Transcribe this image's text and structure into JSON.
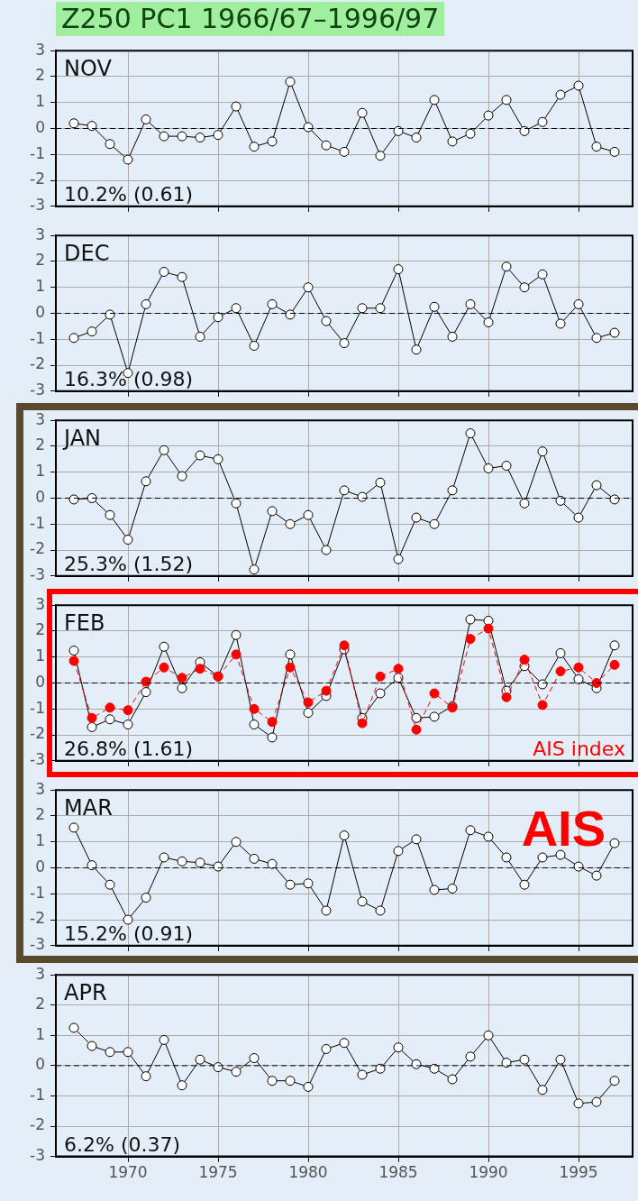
{
  "chart_data": [
    {
      "type": "line",
      "title": "Z250 PC1 1966/67–1996/97",
      "annotations": [
        "NOV",
        "10.2% (0.61)"
      ],
      "x": [
        1967,
        1968,
        1969,
        1970,
        1971,
        1972,
        1973,
        1974,
        1975,
        1976,
        1977,
        1978,
        1979,
        1980,
        1981,
        1982,
        1983,
        1984,
        1985,
        1986,
        1987,
        1988,
        1989,
        1990,
        1991,
        1992,
        1993,
        1994,
        1995,
        1996,
        1997
      ],
      "series": [
        {
          "color": "#000000",
          "values": [
            0.2,
            0.1,
            -0.6,
            -1.2,
            0.35,
            -0.3,
            -0.3,
            -0.35,
            -0.25,
            0.85,
            -0.7,
            -0.5,
            1.8,
            0.05,
            -0.65,
            -0.9,
            0.6,
            -1.05,
            -0.1,
            -0.35,
            1.1,
            -0.5,
            -0.2,
            0.5,
            1.1,
            -0.1,
            0.25,
            1.3,
            1.65,
            -0.7,
            -0.9
          ]
        }
      ],
      "xlim": [
        1966,
        1998
      ],
      "ylim": [
        -3,
        3
      ],
      "xticks": [
        1970,
        1975,
        1980,
        1985,
        1990,
        1995
      ],
      "yticks": [
        -3,
        -2,
        -1,
        0,
        1,
        2,
        3
      ],
      "grid": true,
      "marker": "circle",
      "line_style": "solid",
      "tick_labels": "y",
      "ref_lines": [
        {
          "axis": "y",
          "value": 0,
          "line_style": "dashed"
        }
      ]
    },
    {
      "type": "line",
      "annotations": [
        "DEC",
        "16.3% (0.98)"
      ],
      "x": [
        1967,
        1968,
        1969,
        1970,
        1971,
        1972,
        1973,
        1974,
        1975,
        1976,
        1977,
        1978,
        1979,
        1980,
        1981,
        1982,
        1983,
        1984,
        1985,
        1986,
        1987,
        1988,
        1989,
        1990,
        1991,
        1992,
        1993,
        1994,
        1995,
        1996,
        1997
      ],
      "series": [
        {
          "color": "#000000",
          "values": [
            -0.95,
            -0.7,
            -0.05,
            -2.3,
            0.35,
            1.6,
            1.4,
            -0.9,
            -0.15,
            0.2,
            -1.25,
            0.35,
            -0.05,
            1.0,
            -0.3,
            -1.15,
            0.2,
            0.2,
            1.7,
            -1.4,
            0.25,
            -0.9,
            0.35,
            -0.35,
            1.8,
            1.0,
            1.5,
            -0.4,
            0.35,
            -0.95,
            -0.75
          ]
        }
      ],
      "xlim": [
        1966,
        1998
      ],
      "ylim": [
        -3,
        3
      ],
      "xticks": [
        1970,
        1975,
        1980,
        1985,
        1990,
        1995
      ],
      "yticks": [
        -3,
        -2,
        -1,
        0,
        1,
        2,
        3
      ],
      "grid": true,
      "marker": "circle",
      "line_style": "solid",
      "tick_labels": "y",
      "ref_lines": [
        {
          "axis": "y",
          "value": 0,
          "line_style": "dashed"
        }
      ]
    },
    {
      "type": "line",
      "annotations": [
        "JAN",
        "25.3% (1.52)"
      ],
      "x": [
        1967,
        1968,
        1969,
        1970,
        1971,
        1972,
        1973,
        1974,
        1975,
        1976,
        1977,
        1978,
        1979,
        1980,
        1981,
        1982,
        1983,
        1984,
        1985,
        1986,
        1987,
        1988,
        1989,
        1990,
        1991,
        1992,
        1993,
        1994,
        1995,
        1996,
        1997
      ],
      "series": [
        {
          "color": "#000000",
          "values": [
            -0.05,
            0,
            -0.65,
            -1.6,
            0.65,
            1.85,
            0.85,
            1.65,
            1.5,
            -0.2,
            -2.75,
            -0.5,
            -1.0,
            -0.65,
            -2.0,
            0.3,
            0.05,
            0.6,
            -2.35,
            -0.75,
            -1.0,
            0.3,
            2.5,
            1.15,
            1.25,
            -0.2,
            1.8,
            -0.1,
            -0.75,
            0.5,
            -0.05
          ]
        }
      ],
      "xlim": [
        1966,
        1998
      ],
      "ylim": [
        -3,
        3
      ],
      "xticks": [
        1970,
        1975,
        1980,
        1985,
        1990,
        1995
      ],
      "yticks": [
        -3,
        -2,
        -1,
        0,
        1,
        2,
        3
      ],
      "grid": true,
      "marker": "circle",
      "line_style": "solid",
      "tick_labels": "y",
      "ref_lines": [
        {
          "axis": "y",
          "value": 0,
          "line_style": "dashed"
        }
      ]
    },
    {
      "type": "line",
      "annotations": [
        "FEB",
        "26.8% (1.61)"
      ],
      "legend": "bottom right",
      "x": [
        1967,
        1968,
        1969,
        1970,
        1971,
        1972,
        1973,
        1974,
        1975,
        1976,
        1977,
        1978,
        1979,
        1980,
        1981,
        1982,
        1983,
        1984,
        1985,
        1986,
        1987,
        1988,
        1989,
        1990,
        1991,
        1992,
        1993,
        1994,
        1995,
        1996,
        1997
      ],
      "series": [
        {
          "color": "#000000",
          "line_style": "solid",
          "values": [
            1.25,
            -1.7,
            -1.4,
            -1.6,
            -0.35,
            1.4,
            -0.2,
            0.8,
            0.25,
            1.85,
            -1.6,
            -2.1,
            1.1,
            -1.15,
            -0.5,
            1.3,
            -1.35,
            -0.4,
            0.2,
            -1.35,
            -1.3,
            -0.9,
            2.45,
            2.4,
            -0.3,
            0.65,
            -0.05,
            1.15,
            0.15,
            -0.2,
            1.45
          ]
        },
        {
          "name": "AIS index",
          "color": "#ff0000",
          "line_style": "dashed",
          "values": [
            0.85,
            -1.35,
            -0.95,
            -1.05,
            0.05,
            0.6,
            0.2,
            0.55,
            0.25,
            1.1,
            -1.0,
            -1.5,
            0.6,
            -0.75,
            -0.3,
            1.45,
            -1.55,
            0.25,
            0.55,
            -1.8,
            -0.4,
            -0.95,
            1.7,
            2.1,
            -0.55,
            0.9,
            -0.85,
            0.45,
            0.6,
            0,
            0.7
          ]
        }
      ],
      "xlim": [
        1966,
        1998
      ],
      "ylim": [
        -3,
        3
      ],
      "xticks": [
        1970,
        1975,
        1980,
        1985,
        1990,
        1995
      ],
      "yticks": [
        -3,
        -2,
        -1,
        0,
        1,
        2,
        3
      ],
      "grid": true,
      "marker": "circle",
      "tick_labels": "y",
      "ref_lines": [
        {
          "axis": "y",
          "value": 0,
          "line_style": "dashed"
        }
      ]
    },
    {
      "type": "line",
      "annotations": [
        "MAR",
        "15.2% (0.91)",
        "AIS"
      ],
      "x": [
        1967,
        1968,
        1969,
        1970,
        1971,
        1972,
        1973,
        1974,
        1975,
        1976,
        1977,
        1978,
        1979,
        1980,
        1981,
        1982,
        1983,
        1984,
        1985,
        1986,
        1987,
        1988,
        1989,
        1990,
        1991,
        1992,
        1993,
        1994,
        1995,
        1996,
        1997
      ],
      "series": [
        {
          "color": "#000000",
          "values": [
            1.55,
            0.1,
            -0.65,
            -2.0,
            -1.15,
            0.4,
            0.25,
            0.2,
            0.05,
            1.0,
            0.35,
            0.15,
            -0.65,
            -0.6,
            -1.65,
            1.25,
            -1.3,
            -1.65,
            0.65,
            1.1,
            -0.85,
            -0.8,
            1.45,
            1.2,
            0.4,
            -0.65,
            0.4,
            0.5,
            0.05,
            -0.3,
            0.95
          ]
        }
      ],
      "xlim": [
        1966,
        1998
      ],
      "ylim": [
        -3,
        3
      ],
      "xticks": [
        1970,
        1975,
        1980,
        1985,
        1990,
        1995
      ],
      "yticks": [
        -3,
        -2,
        -1,
        0,
        1,
        2,
        3
      ],
      "grid": true,
      "marker": "circle",
      "line_style": "solid",
      "tick_labels": "y",
      "ref_lines": [
        {
          "axis": "y",
          "value": 0,
          "line_style": "dashed"
        }
      ]
    },
    {
      "type": "line",
      "annotations": [
        "APR",
        "6.2% (0.37)"
      ],
      "x": [
        1967,
        1968,
        1969,
        1970,
        1971,
        1972,
        1973,
        1974,
        1975,
        1976,
        1977,
        1978,
        1979,
        1980,
        1981,
        1982,
        1983,
        1984,
        1985,
        1986,
        1987,
        1988,
        1989,
        1990,
        1991,
        1992,
        1993,
        1994,
        1995,
        1996,
        1997
      ],
      "series": [
        {
          "color": "#000000",
          "values": [
            1.25,
            0.65,
            0.45,
            0.45,
            -0.35,
            0.85,
            -0.65,
            0.2,
            -0.05,
            -0.2,
            0.25,
            -0.5,
            -0.5,
            -0.7,
            0.55,
            0.75,
            -0.3,
            -0.1,
            0.6,
            0.05,
            -0.1,
            -0.45,
            0.3,
            1.0,
            0.1,
            0.2,
            -0.8,
            0.2,
            -1.25,
            -1.2,
            -0.5
          ]
        }
      ],
      "xlim": [
        1966,
        1998
      ],
      "ylim": [
        -3,
        3
      ],
      "xticks": [
        1970,
        1975,
        1980,
        1985,
        1990,
        1995
      ],
      "yticks": [
        -3,
        -2,
        -1,
        0,
        1,
        2,
        3
      ],
      "grid": true,
      "marker": "circle",
      "line_style": "solid",
      "ref_lines": [
        {
          "axis": "y",
          "value": 0,
          "line_style": "dashed"
        }
      ]
    }
  ]
}
